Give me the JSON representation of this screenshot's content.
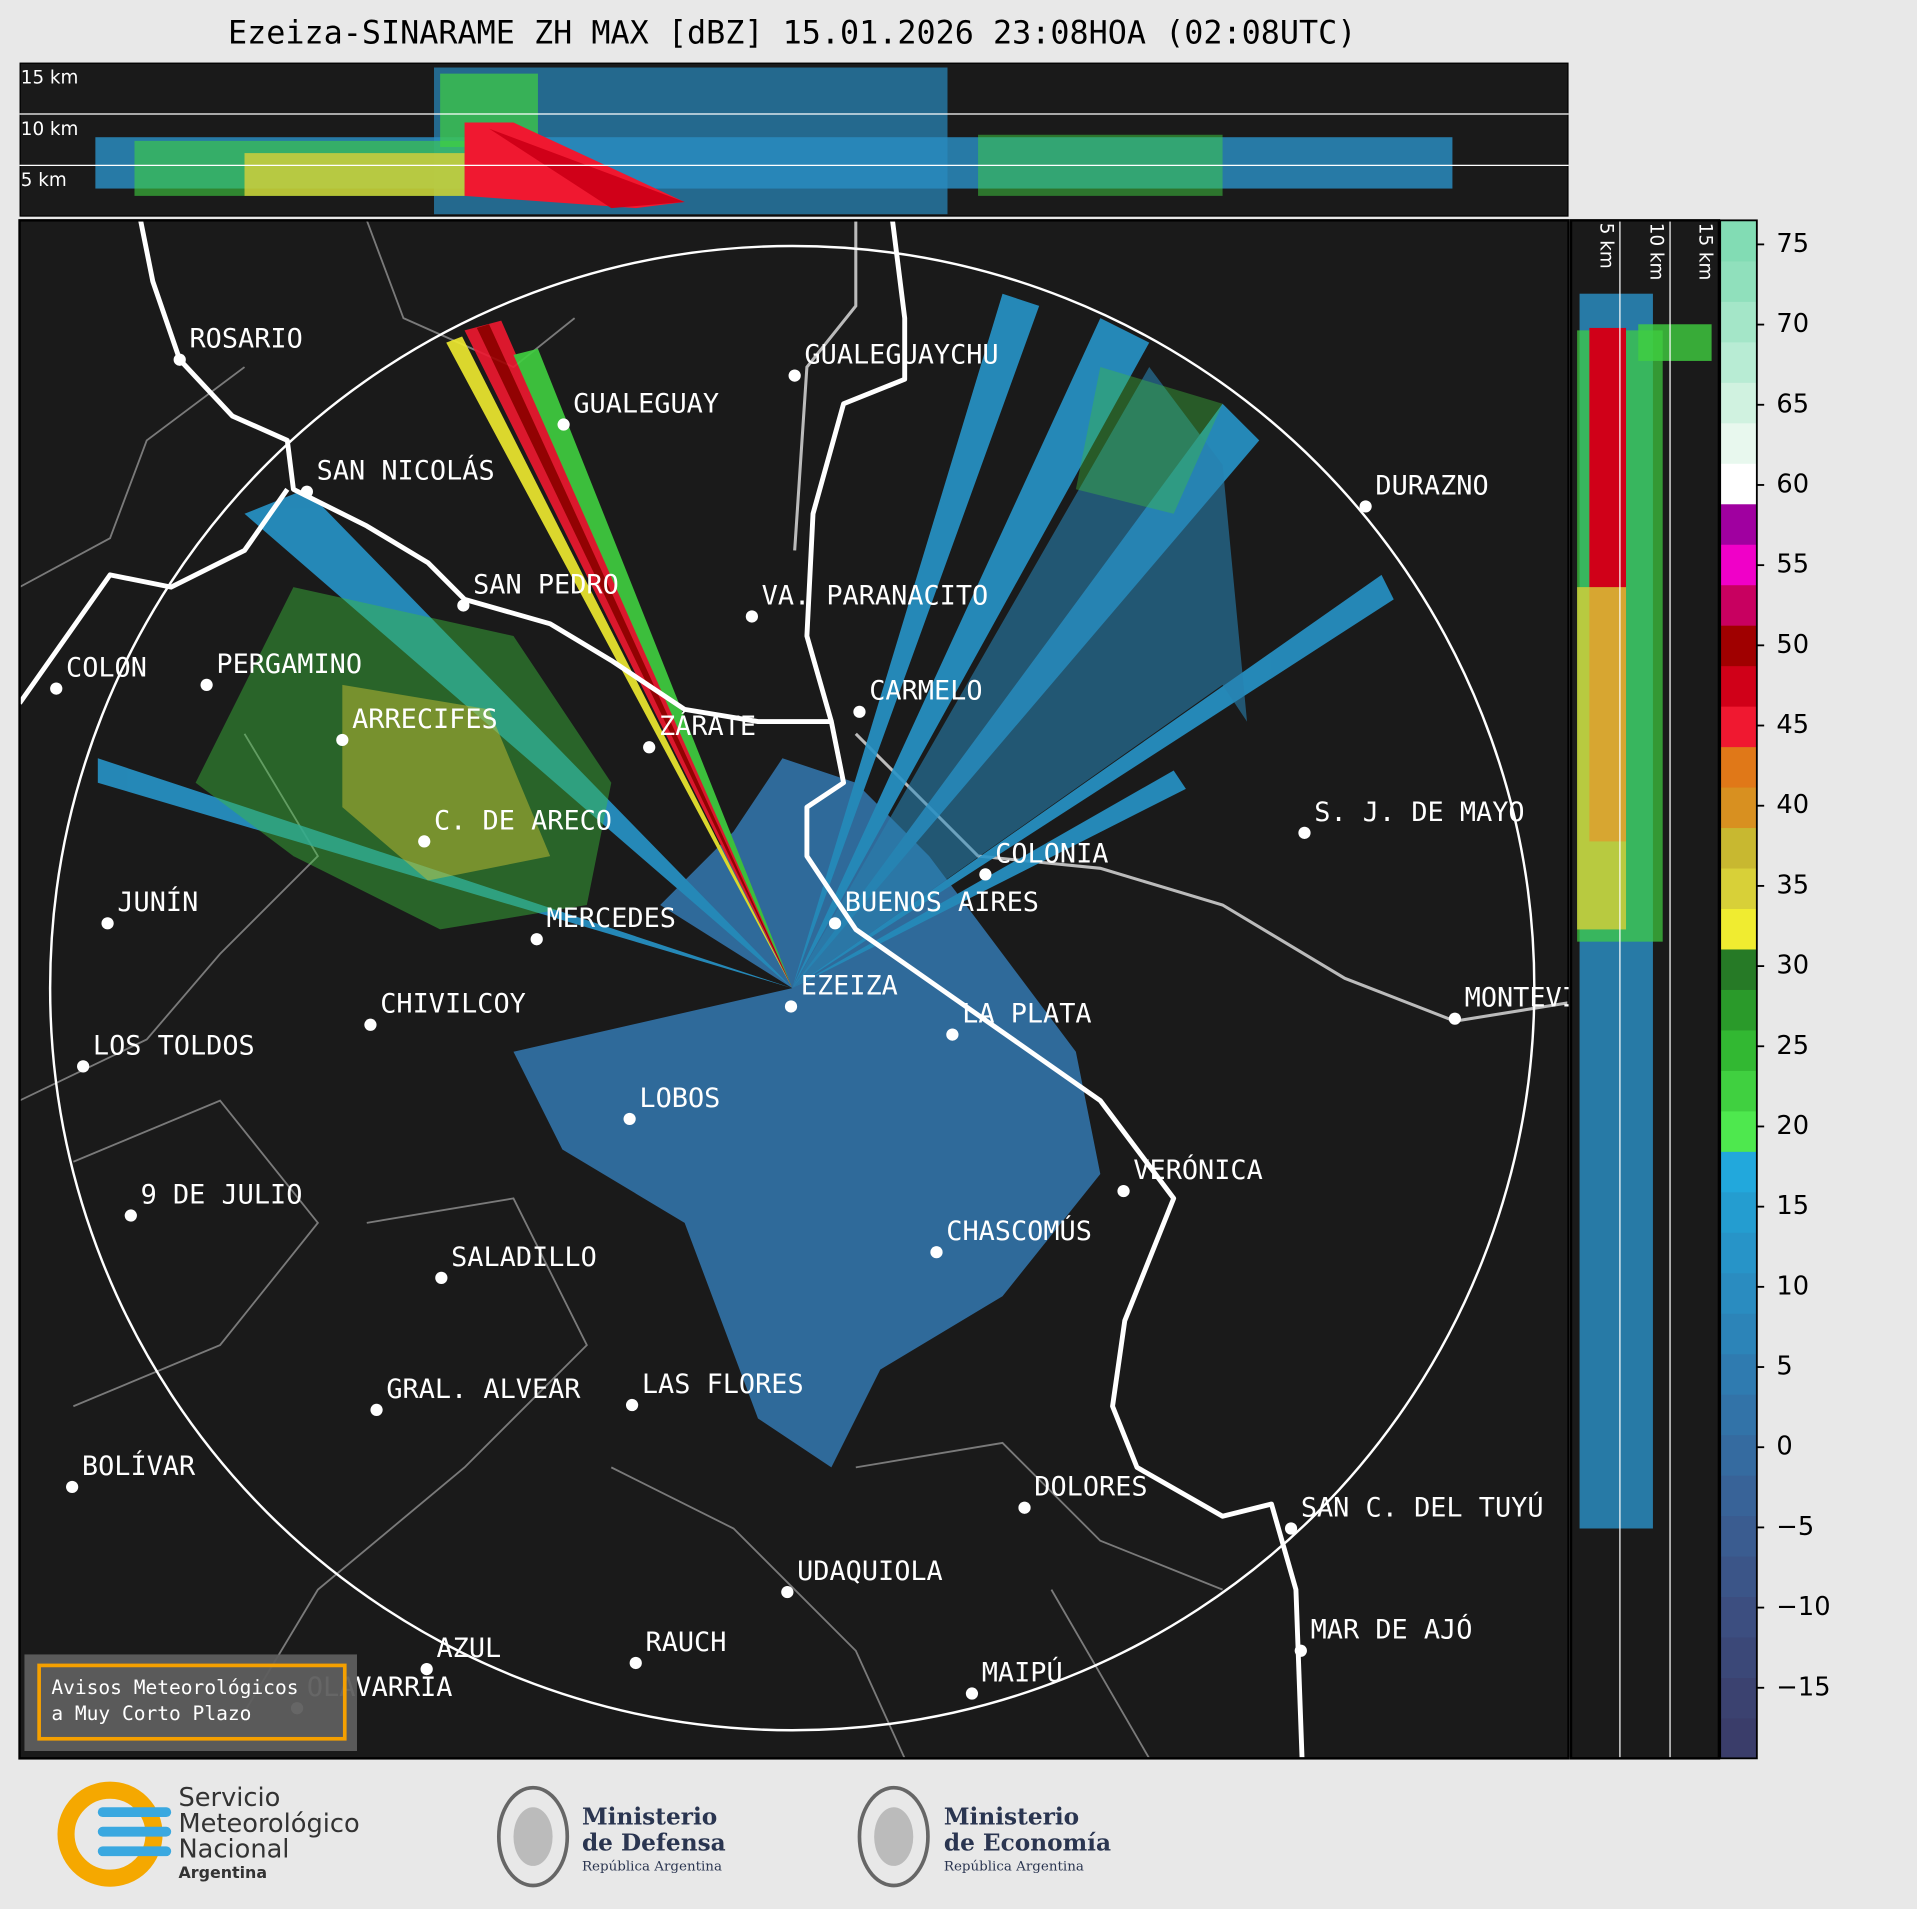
{
  "title": "Ezeiza-SINARAME ZH MAX [dBZ] 15.01.2026 23:08HOA (02:08UTC)",
  "top_panel": {
    "height_labels": [
      "15 km",
      "10 km",
      "5 km"
    ]
  },
  "side_panel": {
    "height_labels": [
      "5 km",
      "10 km",
      "15 km"
    ]
  },
  "map": {
    "cities": [
      "ROSARIO",
      "GUALEGUAYCHU",
      "GUALEGUAY",
      "SAN NICOLÁS",
      "DURAZNO",
      "SAN PEDRO",
      "VA. PARANACITO",
      "COLON",
      "PERGAMINO",
      "CARMELO",
      "ARRECIFES",
      "ZÁRATE",
      "S. J. DE MAYO",
      "C. DE ARECO",
      "COLONIA",
      "BUENOS AIRES",
      "JUNÍN",
      "MERCEDES",
      "EZEIZA",
      "MONTEVIDEO",
      "CHIVILCOY",
      "LA PLATA",
      "LOS TOLDOS",
      "LOBOS",
      "VERÓNICA",
      "9 DE JULIO",
      "CHASCOMÚS",
      "SALADILLO",
      "GRAL. ALVEAR",
      "LAS FLORES",
      "BOLÍVAR",
      "DOLORES",
      "SAN C. DEL TUYÚ",
      "UDAQUIOLA",
      "MAR DE AJÓ",
      "RAUCH",
      "AZUL",
      "MAIPÚ",
      "OLAVARRÍA"
    ]
  },
  "colorbar": {
    "ylim": [
      -19.4,
      76.5
    ],
    "ticks": [
      {
        "value": -15,
        "label": "−15"
      },
      {
        "value": -10,
        "label": "−10"
      },
      {
        "value": -5,
        "label": "−5"
      },
      0,
      5,
      10,
      15,
      20,
      25,
      30,
      35,
      40,
      45,
      50,
      55,
      60,
      65,
      70,
      75
    ],
    "colors": [
      "#3a3d6a",
      "#3b4270",
      "#3b4878",
      "#3c4e80",
      "#3b5588",
      "#3a5c90",
      "#386398",
      "#356ba0",
      "#3273a8",
      "#2f7bb0",
      "#2c84b8",
      "#2a8cc0",
      "#2794c8",
      "#249dd0",
      "#22a8dc",
      "#4ee84e",
      "#40d040",
      "#32b832",
      "#2a9a2a",
      "#267a26",
      "#f0ec30",
      "#d8d038",
      "#c8b830",
      "#d89020",
      "#e07818",
      "#f01830",
      "#d00018",
      "#a00000",
      "#c80060",
      "#f000c8",
      "#a000a0",
      "#ffffff",
      "#e8f8ee",
      "#d0f2e0",
      "#b8ecd4",
      "#a4e6c8",
      "#90e0bc",
      "#82dcb4"
    ]
  },
  "warning_box": {
    "lines": [
      "Avisos Meteorológicos",
      "a Muy Corto Plazo"
    ]
  },
  "logos": {
    "smn": [
      "Servicio",
      "Meteorológico",
      "Nacional",
      "Argentina"
    ],
    "defensa": [
      "Ministerio",
      "de Defensa",
      "República Argentina"
    ],
    "economia": [
      "Ministerio",
      "de Economía",
      "República Argentina"
    ]
  }
}
